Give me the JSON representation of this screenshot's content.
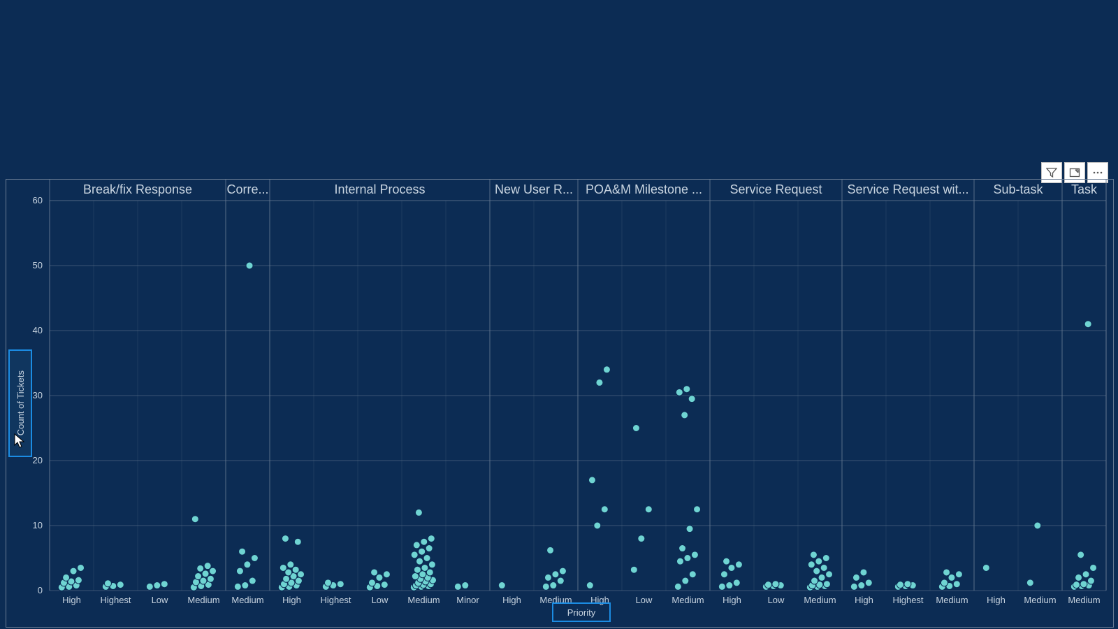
{
  "chart": {
    "type": "scatter-strip",
    "background_color": "#0c2c54",
    "plot_background": "#0c2c54",
    "grid_color": "#6a7c94",
    "text_color": "#c8d4e0",
    "header_fontsize": 18,
    "axis_label_fontsize": 13,
    "tick_fontsize": 13,
    "dot_color": "#6fd4d2",
    "dot_stroke": "#0c2c54",
    "dot_radius": 5,
    "y_axis_title": "Count of Tickets",
    "x_axis_title": "Priority",
    "y": {
      "min": 0,
      "max": 60,
      "tick_step": 10,
      "ticks": [
        0,
        10,
        20,
        30,
        40,
        50,
        60
      ]
    },
    "panels": [
      {
        "label": "Break/fix Response",
        "priorities": [
          {
            "label": "High",
            "values": [
              0.5,
              0.6,
              0.8,
              1.2,
              1.4,
              1.6,
              2.0,
              3.0,
              3.5
            ]
          },
          {
            "label": "Highest",
            "values": [
              0.6,
              0.7,
              0.9,
              1.1
            ]
          },
          {
            "label": "Low",
            "values": [
              0.6,
              0.8,
              1.0
            ]
          },
          {
            "label": "Medium",
            "values": [
              0.5,
              0.7,
              0.9,
              1.3,
              1.5,
              1.8,
              2.2,
              2.6,
              3.0,
              3.4,
              3.8,
              11.0
            ]
          }
        ]
      },
      {
        "label": "Corre...",
        "priorities": [
          {
            "label": "Medium",
            "values": [
              0.6,
              0.8,
              1.5,
              3.0,
              4.0,
              5.0,
              6.0,
              50.0
            ]
          }
        ]
      },
      {
        "label": "Internal Process",
        "priorities": [
          {
            "label": "High",
            "values": [
              0.5,
              0.6,
              0.8,
              1.0,
              1.2,
              1.5,
              1.8,
              2.2,
              2.5,
              2.8,
              3.2,
              3.5,
              4.0,
              7.5,
              8.0
            ]
          },
          {
            "label": "Highest",
            "values": [
              0.6,
              0.8,
              1.0,
              1.2
            ]
          },
          {
            "label": "Low",
            "values": [
              0.5,
              0.7,
              0.9,
              1.2,
              2.0,
              2.5,
              2.8
            ]
          },
          {
            "label": "Medium",
            "values": [
              0.5,
              0.6,
              0.7,
              0.8,
              0.9,
              1.0,
              1.2,
              1.4,
              1.6,
              1.8,
              2.0,
              2.2,
              2.5,
              2.8,
              3.2,
              3.5,
              4.0,
              4.5,
              5.0,
              5.5,
              6.0,
              6.5,
              7.0,
              7.5,
              8.0,
              12.0
            ]
          },
          {
            "label": "Minor",
            "values": [
              0.6,
              0.8
            ]
          }
        ]
      },
      {
        "label": "New User R...",
        "priorities": [
          {
            "label": "High",
            "values": [
              0.8
            ]
          },
          {
            "label": "Medium",
            "values": [
              0.6,
              0.8,
              1.5,
              2.0,
              2.5,
              3.0,
              6.2
            ]
          }
        ]
      },
      {
        "label": "POA&M Milestone ...",
        "priorities": [
          {
            "label": "High",
            "values": [
              0.8,
              10.0,
              12.5,
              17.0,
              32.0,
              34.0
            ]
          },
          {
            "label": "Low",
            "values": [
              3.2,
              8.0,
              12.5,
              25.0
            ]
          },
          {
            "label": "Medium",
            "values": [
              0.6,
              1.5,
              2.5,
              4.5,
              5.0,
              5.5,
              6.5,
              9.5,
              12.5,
              27.0,
              29.5,
              30.5,
              31.0
            ]
          }
        ]
      },
      {
        "label": "Service Request",
        "priorities": [
          {
            "label": "High",
            "values": [
              0.6,
              0.8,
              1.2,
              2.5,
              3.5,
              4.0,
              4.5
            ]
          },
          {
            "label": "Low",
            "values": [
              0.6,
              0.7,
              0.8,
              0.9,
              1.0
            ]
          },
          {
            "label": "Medium",
            "values": [
              0.5,
              0.6,
              0.7,
              0.8,
              0.9,
              1.0,
              1.5,
              2.0,
              2.5,
              3.0,
              3.5,
              4.0,
              4.5,
              5.0,
              5.5
            ]
          }
        ]
      },
      {
        "label": "Service Request wit...",
        "priorities": [
          {
            "label": "High",
            "values": [
              0.6,
              0.8,
              1.2,
              2.0,
              2.8
            ]
          },
          {
            "label": "Highest",
            "values": [
              0.6,
              0.7,
              0.8,
              0.9,
              1.0
            ]
          },
          {
            "label": "Medium",
            "values": [
              0.6,
              0.7,
              1.0,
              1.2,
              2.0,
              2.5,
              2.8
            ]
          }
        ]
      },
      {
        "label": "Sub-task",
        "priorities": [
          {
            "label": "High",
            "values": [
              3.5
            ]
          },
          {
            "label": "Medium",
            "values": [
              1.2,
              10.0
            ]
          }
        ]
      },
      {
        "label": "Task",
        "priorities": [
          {
            "label": "Medium",
            "values": [
              0.6,
              0.7,
              0.8,
              0.9,
              1.0,
              1.5,
              2.0,
              2.5,
              3.5,
              5.5,
              41.0
            ]
          }
        ]
      }
    ]
  },
  "toolbar": {
    "filter_tooltip": "Filter",
    "focus_tooltip": "Focus mode",
    "more_tooltip": "More options"
  }
}
